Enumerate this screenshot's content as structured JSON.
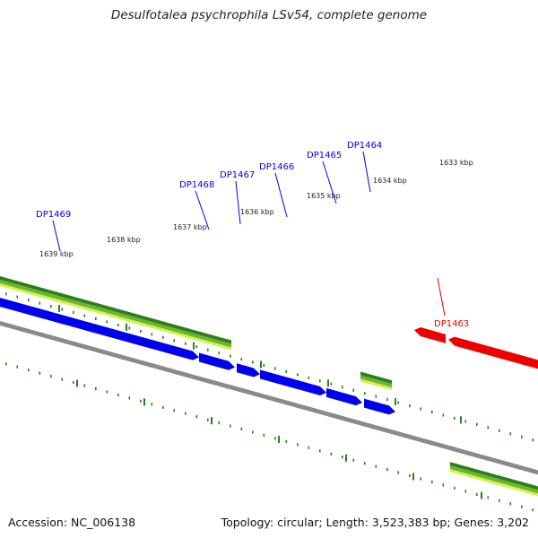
{
  "title": "Desulfotalea psychrophila LSv54, complete genome",
  "footer": {
    "accession": "Accession: NC_006138",
    "topology": "Topology: circular; Length: 3,523,383 bp; Genes: 3,202"
  },
  "colors": {
    "forward_gene": "#0000ee",
    "reverse_gene": "#ee0000",
    "backbone": "#8a8a8a",
    "ticks": "#2e7d1e",
    "track_dark": "#2e7d1e",
    "track_mid": "#6ab82a",
    "track_light": "#d4f050"
  },
  "scale_labels": [
    {
      "text": "1639 kbp",
      "key": "1639"
    },
    {
      "text": "1638 kbp",
      "key": "1638"
    },
    {
      "text": "1637 kbp",
      "key": "1637"
    },
    {
      "text": "1636 kbp",
      "key": "1636"
    },
    {
      "text": "1635 kbp",
      "key": "1635"
    },
    {
      "text": "1634 kbp",
      "key": "1634"
    },
    {
      "text": "1633 kbp",
      "key": "1633"
    }
  ],
  "genes": [
    {
      "name": "DP1469",
      "strand": "forward"
    },
    {
      "name": "DP1468",
      "strand": "forward"
    },
    {
      "name": "DP1467",
      "strand": "forward"
    },
    {
      "name": "DP1466",
      "strand": "forward"
    },
    {
      "name": "DP1465",
      "strand": "forward"
    },
    {
      "name": "DP1464",
      "strand": "forward"
    },
    {
      "name": "DP1463",
      "strand": "reverse"
    }
  ]
}
